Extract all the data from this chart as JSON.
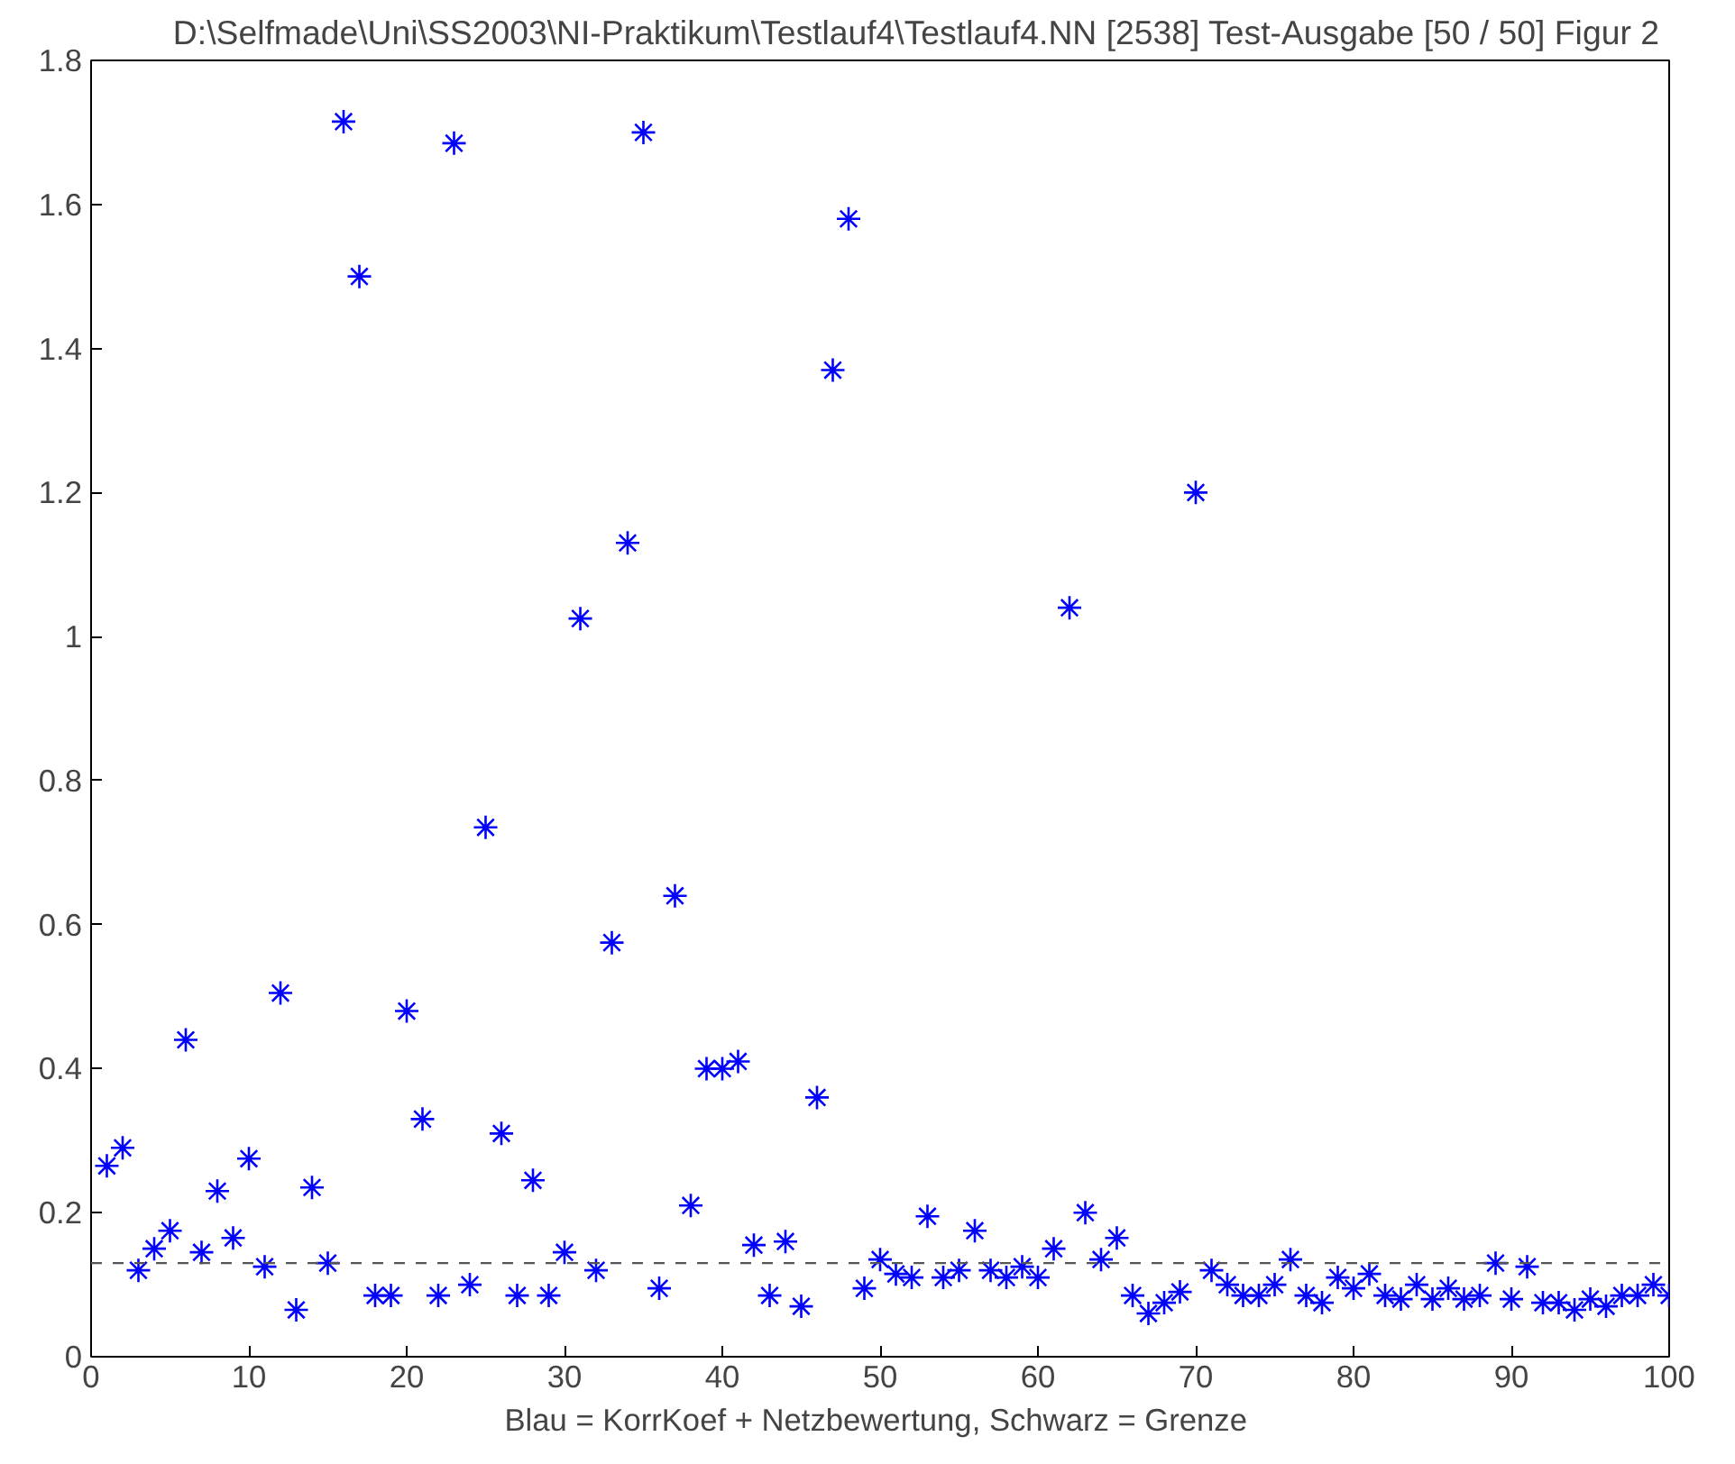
{
  "chart_data": {
    "type": "scatter",
    "title": "D:\\Selfmade\\Uni\\SS2003\\NI-Praktikum\\Testlauf4\\Testlauf4.NN [2538] Test-Ausgabe [50 / 50]  Figur 2",
    "xlabel": "Blau = KorrKoef + Netzbewertung,  Schwarz = Grenze",
    "x": [
      1,
      2,
      3,
      4,
      5,
      6,
      7,
      8,
      9,
      10,
      11,
      12,
      13,
      14,
      15,
      16,
      17,
      18,
      19,
      20,
      21,
      22,
      23,
      24,
      25,
      26,
      27,
      28,
      29,
      30,
      31,
      32,
      33,
      34,
      35,
      36,
      37,
      38,
      39,
      40,
      41,
      42,
      43,
      44,
      45,
      46,
      47,
      48,
      49,
      50,
      51,
      52,
      53,
      54,
      55,
      56,
      57,
      58,
      59,
      60,
      61,
      62,
      63,
      64,
      65,
      66,
      67,
      68,
      69,
      70,
      71,
      72,
      73,
      74,
      75,
      76,
      77,
      78,
      79,
      80,
      81,
      82,
      83,
      84,
      85,
      86,
      87,
      88,
      89,
      90,
      91,
      92,
      93,
      94,
      95,
      96,
      97,
      98,
      99,
      100
    ],
    "series": [
      {
        "color": "#0000ff",
        "values": [
          0.265,
          0.29,
          0.12,
          0.15,
          0.175,
          0.44,
          0.145,
          0.23,
          0.165,
          0.275,
          0.125,
          0.505,
          0.065,
          0.235,
          0.13,
          1.715,
          1.5,
          0.085,
          0.085,
          0.48,
          0.33,
          0.085,
          1.685,
          0.1,
          0.735,
          0.31,
          0.085,
          0.245,
          0.085,
          0.145,
          1.025,
          0.12,
          0.575,
          1.13,
          1.7,
          0.095,
          0.64,
          0.21,
          0.4,
          0.4,
          0.41,
          0.155,
          0.085,
          0.16,
          0.07,
          0.36,
          1.37,
          1.58,
          0.095,
          0.135,
          0.115,
          0.11,
          0.195,
          0.11,
          0.12,
          0.175,
          0.12,
          0.11,
          0.125,
          0.11,
          0.15,
          1.04,
          0.2,
          0.135,
          0.165,
          0.085,
          0.06,
          0.075,
          0.09,
          1.2,
          0.12,
          0.1,
          0.085,
          0.085,
          0.1,
          0.135,
          0.085,
          0.075,
          0.11,
          0.095,
          0.115,
          0.085,
          0.08,
          0.1,
          0.08,
          0.095,
          0.08,
          0.085,
          0.13,
          0.08,
          0.125,
          0.075,
          0.075,
          0.065,
          0.08,
          0.07,
          0.085,
          0.085,
          0.1,
          0.085
        ]
      }
    ],
    "xlim": [
      0,
      100
    ],
    "ylim": [
      0,
      1.8
    ],
    "xticks": [
      0,
      10,
      20,
      30,
      40,
      50,
      60,
      70,
      80,
      90,
      100
    ],
    "yticks": [
      0,
      0.2,
      0.4,
      0.6,
      0.8,
      1,
      1.2,
      1.4,
      1.6,
      1.8
    ],
    "ref_lines": [
      {
        "axis": "y",
        "value": 0.13,
        "color": "#555555",
        "line_style": "dashed"
      }
    ],
    "marker": "cross",
    "grid": false
  }
}
